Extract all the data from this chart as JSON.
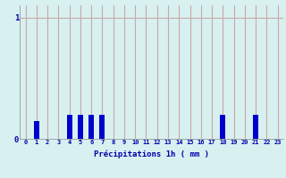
{
  "categories": [
    0,
    1,
    2,
    3,
    4,
    5,
    6,
    7,
    8,
    9,
    10,
    11,
    12,
    13,
    14,
    15,
    16,
    17,
    18,
    19,
    20,
    21,
    22,
    23
  ],
  "values": [
    0,
    0.15,
    0,
    0,
    0.2,
    0.2,
    0.2,
    0.2,
    0,
    0,
    0,
    0,
    0,
    0,
    0,
    0,
    0,
    0,
    0.2,
    0,
    0,
    0.2,
    0,
    0
  ],
  "bar_color": "#0000cc",
  "background_color": "#d8f0f0",
  "grid_color": "#c8a8a8",
  "text_color": "#0000aa",
  "xlabel": "Précipitations 1h ( mm )",
  "ytick_labels": [
    "0",
    "1"
  ],
  "ytick_vals": [
    0,
    1
  ],
  "ylim": [
    0,
    1.1
  ],
  "xlim": [
    -0.5,
    23.5
  ],
  "bar_width": 0.5
}
